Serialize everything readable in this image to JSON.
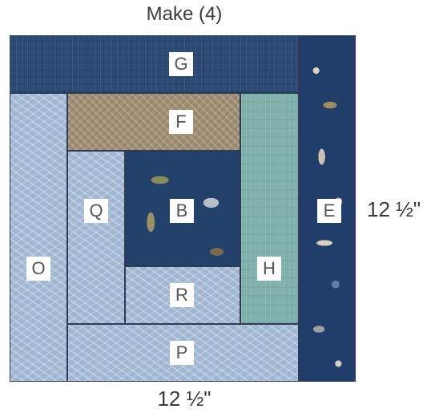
{
  "title": "Make (4)",
  "dimensions": {
    "width_label": "12 ½\"",
    "height_label": "12 ½\""
  },
  "patches": {
    "G": "G",
    "F": "F",
    "B": "B",
    "H": "H",
    "E": "E",
    "O": "O",
    "Q": "Q",
    "R": "R",
    "P": "P"
  },
  "colors": {
    "navy": "#2b4b76",
    "tan": "#a28f73",
    "light_blue": "#9fb6d2",
    "teal": "#7fb2ab",
    "fish_print": "#22416b",
    "nautical_print": "#213e6a"
  }
}
